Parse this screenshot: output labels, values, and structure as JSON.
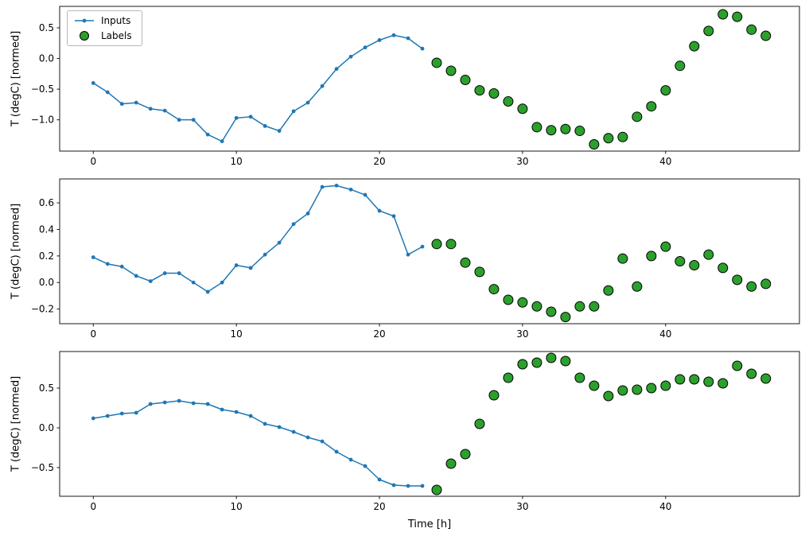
{
  "figure": {
    "xlabel": "Time [h]",
    "ylabel": "T (degC) [normed]",
    "legend": {
      "inputs": "Inputs",
      "labels": "Labels"
    },
    "colors": {
      "inputs": "#1f77b4",
      "labels": "#2ca02c",
      "marker_edge": "#000000"
    }
  },
  "chart_data": [
    {
      "type": "line",
      "title": "",
      "xlabel": "",
      "ylabel": "T (degC) [normed]",
      "xlim": [
        -2.35,
        49.35
      ],
      "ylim": [
        -1.51,
        0.85
      ],
      "xticks": [
        0,
        10,
        20,
        30,
        40
      ],
      "yticks": [
        0.5,
        0.0,
        -0.5,
        -1.0
      ],
      "series": [
        {
          "name": "Inputs",
          "type": "line",
          "x": [
            0,
            1,
            2,
            3,
            4,
            5,
            6,
            7,
            8,
            9,
            10,
            11,
            12,
            13,
            14,
            15,
            16,
            17,
            18,
            19,
            20,
            21,
            22,
            23
          ],
          "y": [
            -0.4,
            -0.55,
            -0.74,
            -0.72,
            -0.82,
            -0.85,
            -1.0,
            -1.0,
            -1.24,
            -1.35,
            -0.97,
            -0.95,
            -1.1,
            -1.18,
            -0.86,
            -0.72,
            -0.45,
            -0.17,
            0.03,
            0.18,
            0.3,
            0.38,
            0.33,
            0.16
          ]
        },
        {
          "name": "Labels",
          "type": "scatter",
          "x": [
            24,
            25,
            26,
            27,
            28,
            29,
            30,
            31,
            32,
            33,
            34,
            35,
            36,
            37,
            38,
            39,
            40,
            41,
            42,
            43,
            44,
            45,
            46,
            47
          ],
          "y": [
            -0.07,
            -0.2,
            -0.35,
            -0.52,
            -0.57,
            -0.7,
            -0.82,
            -1.12,
            -1.17,
            -1.15,
            -1.18,
            -1.4,
            -1.3,
            -1.28,
            -0.95,
            -0.78,
            -0.52,
            -0.12,
            0.2,
            0.45,
            0.72,
            0.68,
            0.47,
            0.37
          ]
        }
      ]
    },
    {
      "type": "line",
      "title": "",
      "xlabel": "",
      "ylabel": "T (degC) [normed]",
      "xlim": [
        -2.35,
        49.35
      ],
      "ylim": [
        -0.31,
        0.78
      ],
      "xticks": [
        0,
        10,
        20,
        30,
        40
      ],
      "yticks": [
        0.6,
        0.4,
        0.2,
        0.0,
        -0.2
      ],
      "series": [
        {
          "name": "Inputs",
          "type": "line",
          "x": [
            0,
            1,
            2,
            3,
            4,
            5,
            6,
            7,
            8,
            9,
            10,
            11,
            12,
            13,
            14,
            15,
            16,
            17,
            18,
            19,
            20,
            21,
            22,
            23
          ],
          "y": [
            0.19,
            0.14,
            0.12,
            0.05,
            0.01,
            0.07,
            0.07,
            0.0,
            -0.07,
            0.0,
            0.13,
            0.11,
            0.21,
            0.3,
            0.44,
            0.52,
            0.72,
            0.73,
            0.7,
            0.66,
            0.54,
            0.5,
            0.21,
            0.27
          ]
        },
        {
          "name": "Labels",
          "type": "scatter",
          "x": [
            24,
            25,
            26,
            27,
            28,
            29,
            30,
            31,
            32,
            33,
            34,
            35,
            36,
            37,
            38,
            39,
            40,
            41,
            42,
            43,
            44,
            45,
            46,
            47
          ],
          "y": [
            0.29,
            0.29,
            0.15,
            0.08,
            -0.05,
            -0.13,
            -0.15,
            -0.18,
            -0.22,
            -0.26,
            -0.18,
            -0.18,
            -0.06,
            0.18,
            -0.03,
            0.2,
            0.27,
            0.16,
            0.13,
            0.21,
            0.11,
            0.02,
            -0.03,
            -0.01
          ]
        }
      ]
    },
    {
      "type": "line",
      "title": "",
      "xlabel": "Time [h]",
      "ylabel": "T (degC) [normed]",
      "xlim": [
        -2.35,
        49.35
      ],
      "ylim": [
        -0.86,
        0.96
      ],
      "xticks": [
        0,
        10,
        20,
        30,
        40
      ],
      "yticks": [
        0.5,
        0.0,
        -0.5
      ],
      "series": [
        {
          "name": "Inputs",
          "type": "line",
          "x": [
            0,
            1,
            2,
            3,
            4,
            5,
            6,
            7,
            8,
            9,
            10,
            11,
            12,
            13,
            14,
            15,
            16,
            17,
            18,
            19,
            20,
            21,
            22,
            23
          ],
          "y": [
            0.12,
            0.15,
            0.18,
            0.19,
            0.3,
            0.32,
            0.34,
            0.31,
            0.3,
            0.23,
            0.2,
            0.15,
            0.05,
            0.01,
            -0.05,
            -0.12,
            -0.17,
            -0.3,
            -0.4,
            -0.48,
            -0.65,
            -0.72,
            -0.73,
            -0.73
          ]
        },
        {
          "name": "Labels",
          "type": "scatter",
          "x": [
            24,
            25,
            26,
            27,
            28,
            29,
            30,
            31,
            32,
            33,
            34,
            35,
            36,
            37,
            38,
            39,
            40,
            41,
            42,
            43,
            44,
            45,
            46,
            47
          ],
          "y": [
            -0.78,
            -0.45,
            -0.33,
            0.05,
            0.41,
            0.63,
            0.8,
            0.82,
            0.88,
            0.84,
            0.63,
            0.53,
            0.4,
            0.47,
            0.48,
            0.5,
            0.53,
            0.61,
            0.61,
            0.58,
            0.56,
            0.78,
            0.68,
            0.62
          ]
        }
      ]
    }
  ]
}
